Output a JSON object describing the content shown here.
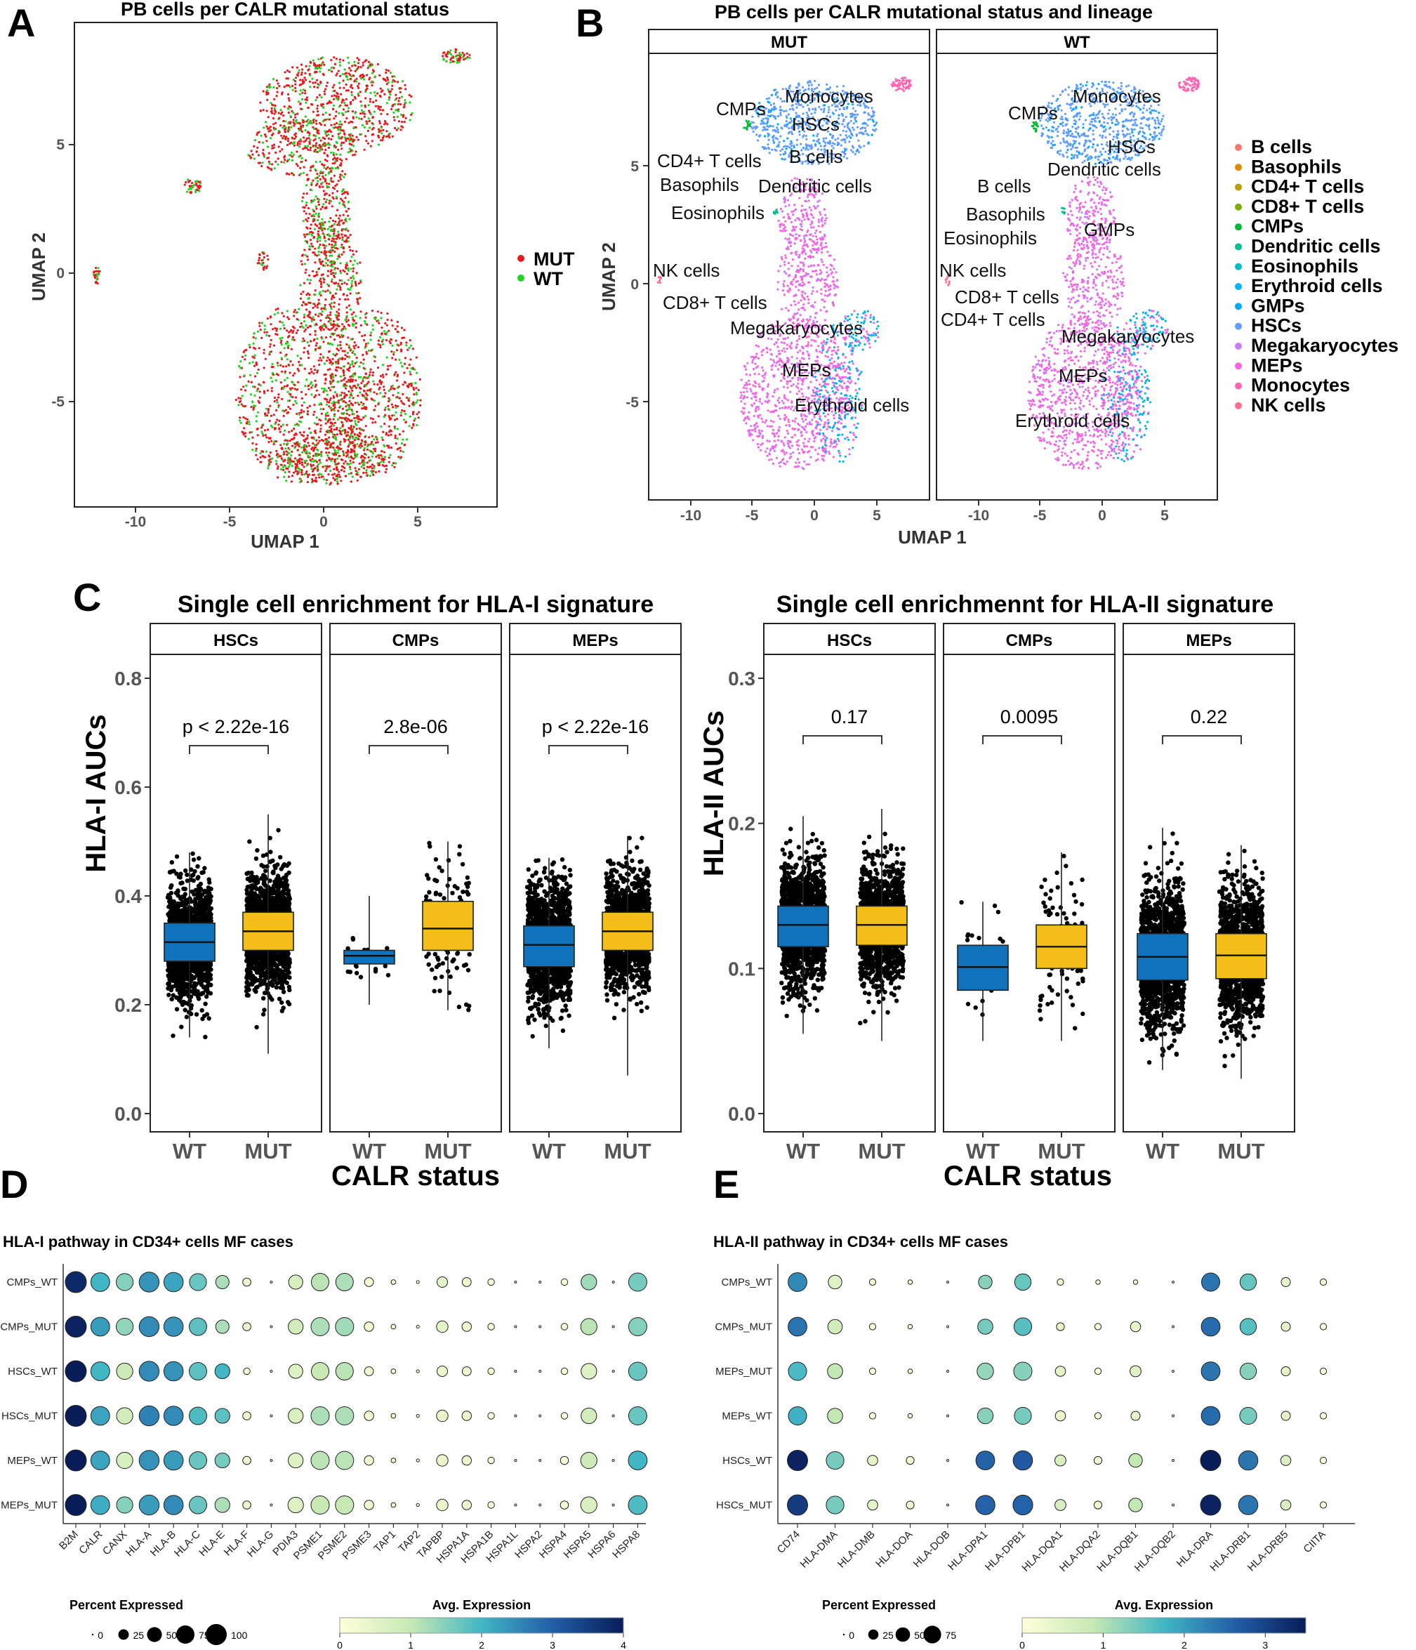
{
  "panels": {
    "A": "A",
    "B": "B",
    "C": "C",
    "D": "D",
    "E": "E"
  },
  "panelA": {
    "title": "PB cells per CALR mutational status",
    "xlabel": "UMAP 1",
    "ylabel": "UMAP 2",
    "xticks": [
      "-10",
      "-5",
      "0",
      "5"
    ],
    "yticks": [
      "-5",
      "0",
      "5"
    ],
    "legend": [
      {
        "label": "MUT",
        "color": "#e8191c"
      },
      {
        "label": "WT",
        "color": "#1fd31f"
      }
    ]
  },
  "panelB": {
    "title": "PB cells per CALR mutational status and lineage",
    "facets": [
      "MUT",
      "WT"
    ],
    "xlabel": "UMAP 1",
    "ylabel": "UMAP 2",
    "xticks": [
      "-10",
      "-5",
      "0",
      "5"
    ],
    "yticks": [
      "-5",
      "0",
      "5"
    ],
    "mut_labels": [
      "Monocytes",
      "CMPs",
      "HSCs",
      "CD4+ T cells",
      "B cells",
      "Basophils",
      "Dendritic cells",
      "Eosinophils",
      "NK cells",
      "CD8+ T cells",
      "Megakaryocytes",
      "MEPs",
      "Erythroid cells"
    ],
    "wt_labels": [
      "Monocytes",
      "CMPs",
      "HSCs",
      "Dendritic cells",
      "B cells",
      "Basophils",
      "GMPs",
      "Eosinophils",
      "NK cells",
      "CD8+ T cells",
      "CD4+ T cells",
      "Megakaryocytes",
      "MEPs",
      "Erythroid cells"
    ],
    "legend": [
      {
        "label": "B cells",
        "color": "#f8766d"
      },
      {
        "label": "Basophils",
        "color": "#de8c00"
      },
      {
        "label": "CD4+ T cells",
        "color": "#b79f00"
      },
      {
        "label": "CD8+ T cells",
        "color": "#7cae00"
      },
      {
        "label": "CMPs",
        "color": "#00ba38"
      },
      {
        "label": "Dendritic cells",
        "color": "#00c08b"
      },
      {
        "label": "Eosinophils",
        "color": "#00bfc4"
      },
      {
        "label": "Erythroid cells",
        "color": "#00b4f0"
      },
      {
        "label": "GMPs",
        "color": "#00a9ff"
      },
      {
        "label": "HSCs",
        "color": "#619cff"
      },
      {
        "label": "Megakaryocytes",
        "color": "#c77cff"
      },
      {
        "label": "MEPs",
        "color": "#f564e3"
      },
      {
        "label": "Monocytes",
        "color": "#ff64b0"
      },
      {
        "label": "NK cells",
        "color": "#ff6c91"
      }
    ]
  },
  "chart_data": [
    {
      "type": "box",
      "title": "Single cell enrichment for HLA-I signature",
      "ylabel": "HLA-I AUCs",
      "xlabel": "CALR status",
      "ylim": [
        0,
        0.8
      ],
      "yticks": [
        "0.0",
        "0.2",
        "0.4",
        "0.6",
        "0.8"
      ],
      "categories": [
        "WT",
        "MUT"
      ],
      "colors": {
        "WT": "#0f72bd",
        "MUT": "#f2be17"
      },
      "facets": [
        {
          "name": "HSCs",
          "p": "p < 2.22e-16",
          "WT": {
            "min": 0.14,
            "q1": 0.28,
            "median": 0.315,
            "q3": 0.35,
            "max": 0.48
          },
          "MUT": {
            "min": 0.11,
            "q1": 0.3,
            "median": 0.335,
            "q3": 0.37,
            "max": 0.55
          }
        },
        {
          "name": "CMPs",
          "p": "2.8e-06",
          "WT": {
            "min": 0.2,
            "q1": 0.275,
            "median": 0.29,
            "q3": 0.3,
            "max": 0.4
          },
          "MUT": {
            "min": 0.19,
            "q1": 0.3,
            "median": 0.34,
            "q3": 0.39,
            "max": 0.5
          }
        },
        {
          "name": "MEPs",
          "p": "p < 2.22e-16",
          "WT": {
            "min": 0.12,
            "q1": 0.27,
            "median": 0.31,
            "q3": 0.345,
            "max": 0.47
          },
          "MUT": {
            "min": 0.07,
            "q1": 0.3,
            "median": 0.335,
            "q3": 0.37,
            "max": 0.51
          }
        }
      ]
    },
    {
      "type": "box",
      "title": "Single cell enrichmennt for HLA-II signature",
      "ylabel": "HLA-II AUCs",
      "xlabel": "CALR status",
      "ylim": [
        0,
        0.3
      ],
      "yticks": [
        "0.0",
        "0.1",
        "0.2",
        "0.3"
      ],
      "categories": [
        "WT",
        "MUT"
      ],
      "colors": {
        "WT": "#0f72bd",
        "MUT": "#f2be17"
      },
      "facets": [
        {
          "name": "HSCs",
          "p": "0.17",
          "WT": {
            "min": 0.055,
            "q1": 0.115,
            "median": 0.13,
            "q3": 0.143,
            "max": 0.205
          },
          "MUT": {
            "min": 0.05,
            "q1": 0.116,
            "median": 0.13,
            "q3": 0.143,
            "max": 0.21
          }
        },
        {
          "name": "CMPs",
          "p": "0.0095",
          "WT": {
            "min": 0.05,
            "q1": 0.085,
            "median": 0.101,
            "q3": 0.116,
            "max": 0.146
          },
          "MUT": {
            "min": 0.05,
            "q1": 0.1,
            "median": 0.115,
            "q3": 0.13,
            "max": 0.18
          }
        },
        {
          "name": "MEPs",
          "p": "0.22",
          "WT": {
            "min": 0.03,
            "q1": 0.092,
            "median": 0.108,
            "q3": 0.124,
            "max": 0.197
          },
          "MUT": {
            "min": 0.024,
            "q1": 0.093,
            "median": 0.109,
            "q3": 0.124,
            "max": 0.185
          }
        }
      ]
    },
    {
      "type": "dotplot",
      "title": "HLA-I pathway in CD34+ cells MF cases",
      "rows": [
        "CMPs_WT",
        "CMPs_MUT",
        "HSCs_WT",
        "HSCs_MUT",
        "MEPs_WT",
        "MEPs_MUT"
      ],
      "genes": [
        "B2M",
        "CALR",
        "CANX",
        "HLA-A",
        "HLA-B",
        "HLA-C",
        "HLA-E",
        "HLA-F",
        "HLA-G",
        "PDIA3",
        "PSME1",
        "PSME2",
        "PSME3",
        "TAP1",
        "TAP2",
        "TAPBP",
        "HSPA1A",
        "HSPA1B",
        "HSPA1L",
        "HSPA2",
        "HSPA4",
        "HSPA5",
        "HSPA6",
        "HSPA8"
      ],
      "pct": [
        [
          100,
          80,
          65,
          90,
          85,
          65,
          40,
          15,
          1,
          45,
          70,
          70,
          18,
          5,
          2,
          25,
          18,
          10,
          1,
          1,
          10,
          55,
          1,
          75
        ],
        [
          100,
          80,
          65,
          90,
          85,
          70,
          40,
          15,
          1,
          50,
          75,
          75,
          20,
          5,
          2,
          30,
          20,
          10,
          1,
          1,
          10,
          60,
          1,
          75
        ],
        [
          100,
          80,
          60,
          90,
          85,
          70,
          50,
          10,
          1,
          45,
          70,
          70,
          18,
          5,
          2,
          25,
          18,
          10,
          1,
          1,
          10,
          55,
          1,
          75
        ],
        [
          100,
          80,
          60,
          90,
          85,
          70,
          50,
          15,
          1,
          50,
          75,
          75,
          20,
          5,
          2,
          30,
          20,
          10,
          1,
          1,
          10,
          55,
          1,
          75
        ],
        [
          100,
          80,
          60,
          90,
          85,
          70,
          50,
          15,
          1,
          50,
          75,
          75,
          20,
          5,
          2,
          30,
          20,
          10,
          1,
          1,
          15,
          60,
          1,
          80
        ],
        [
          100,
          80,
          60,
          90,
          85,
          70,
          50,
          15,
          1,
          55,
          75,
          75,
          20,
          5,
          2,
          30,
          20,
          10,
          1,
          1,
          15,
          60,
          1,
          80
        ]
      ],
      "avg": [
        [
          3.8,
          2.0,
          1.5,
          2.4,
          2.2,
          1.7,
          1.2,
          0.3,
          0.0,
          0.7,
          1.1,
          1.2,
          0.2,
          0.1,
          0.0,
          0.5,
          0.3,
          0.1,
          0.0,
          0.0,
          0.1,
          1.3,
          0.0,
          1.6
        ],
        [
          3.9,
          2.3,
          1.4,
          2.5,
          2.4,
          1.8,
          1.2,
          0.3,
          0.0,
          0.8,
          1.2,
          1.3,
          0.2,
          0.1,
          0.0,
          0.5,
          0.3,
          0.1,
          0.0,
          0.0,
          0.1,
          1.1,
          0.0,
          1.5
        ],
        [
          4.0,
          2.0,
          0.9,
          2.5,
          2.4,
          1.8,
          2.0,
          0.2,
          0.0,
          0.6,
          1.0,
          1.1,
          0.2,
          0.1,
          0.0,
          0.4,
          0.3,
          0.1,
          0.0,
          0.0,
          0.1,
          0.6,
          0.0,
          1.7
        ],
        [
          4.0,
          2.2,
          0.8,
          2.6,
          2.5,
          1.9,
          1.8,
          0.2,
          0.0,
          0.7,
          1.2,
          1.2,
          0.2,
          0.1,
          0.0,
          0.4,
          0.3,
          0.1,
          0.0,
          0.0,
          0.1,
          0.8,
          0.0,
          1.7
        ],
        [
          4.0,
          2.2,
          0.7,
          2.4,
          2.3,
          1.7,
          1.6,
          0.3,
          0.0,
          0.6,
          1.1,
          1.1,
          0.2,
          0.1,
          0.0,
          0.4,
          0.3,
          0.1,
          0.0,
          0.0,
          0.2,
          0.9,
          0.0,
          2.0
        ],
        [
          4.0,
          2.1,
          1.5,
          2.3,
          2.5,
          1.7,
          1.2,
          0.3,
          0.0,
          0.6,
          1.0,
          1.0,
          0.2,
          0.1,
          0.0,
          0.4,
          0.3,
          0.1,
          0.0,
          0.0,
          0.2,
          0.7,
          0.0,
          1.9
        ]
      ],
      "size_legend_title": "Percent Expressed",
      "size_legend": [
        "0",
        "25",
        "50",
        "75",
        "100"
      ],
      "color_legend_title": "Avg. Expression",
      "color_legend": [
        "0",
        "1",
        "2",
        "3",
        "4"
      ],
      "color_max": 4
    },
    {
      "type": "dotplot",
      "title": "HLA-II pathway in CD34+ cells MF cases",
      "rows": [
        "CMPs_WT",
        "CMPs_MUT",
        "MEPs_MUT",
        "MEPs_WT",
        "HSCs_WT",
        "HSCs_MUT"
      ],
      "genes": [
        "CD74",
        "HLA-DMA",
        "HLA-DMB",
        "HLA-DOA",
        "HLA-DOB",
        "HLA-DPA1",
        "HLA-DPB1",
        "HLA-DQA1",
        "HLA-DQA2",
        "HLA-DQB1",
        "HLA-DQB2",
        "HLA-DRA",
        "HLA-DRB1",
        "HLA-DRB5",
        "CIITA"
      ],
      "pct": [
        [
          85,
          45,
          10,
          5,
          1,
          45,
          65,
          10,
          5,
          5,
          1,
          80,
          65,
          20,
          10
        ],
        [
          85,
          50,
          10,
          5,
          1,
          55,
          75,
          15,
          10,
          25,
          1,
          85,
          65,
          20,
          10
        ],
        [
          80,
          55,
          10,
          5,
          1,
          65,
          80,
          25,
          10,
          30,
          1,
          85,
          65,
          20,
          10
        ],
        [
          80,
          55,
          10,
          5,
          1,
          60,
          70,
          25,
          10,
          20,
          1,
          85,
          70,
          20,
          10
        ],
        [
          100,
          75,
          25,
          15,
          1,
          85,
          90,
          30,
          15,
          45,
          1,
          100,
          90,
          25,
          10
        ],
        [
          100,
          75,
          25,
          15,
          1,
          90,
          95,
          30,
          15,
          45,
          1,
          100,
          90,
          25,
          10
        ]
      ],
      "avg": [
        [
          2.2,
          0.5,
          0.1,
          0.1,
          0.0,
          1.3,
          1.5,
          0.3,
          0.1,
          0.2,
          0.0,
          2.4,
          1.5,
          0.4,
          0.1
        ],
        [
          2.4,
          0.7,
          0.1,
          0.1,
          0.0,
          1.4,
          1.6,
          0.3,
          0.1,
          0.4,
          0.0,
          2.5,
          1.6,
          0.4,
          0.1
        ],
        [
          1.7,
          0.9,
          0.1,
          0.1,
          0.0,
          1.2,
          1.3,
          0.4,
          0.1,
          0.5,
          0.0,
          2.4,
          1.3,
          0.4,
          0.1
        ],
        [
          1.8,
          0.9,
          0.1,
          0.1,
          0.0,
          1.3,
          1.4,
          0.3,
          0.1,
          0.4,
          0.0,
          2.5,
          1.4,
          0.4,
          0.1
        ],
        [
          3.4,
          1.4,
          0.4,
          0.2,
          0.0,
          2.6,
          2.7,
          0.6,
          0.3,
          0.9,
          0.0,
          3.5,
          2.4,
          0.6,
          0.1
        ],
        [
          3.1,
          1.4,
          0.4,
          0.2,
          0.0,
          2.6,
          2.6,
          0.6,
          0.3,
          0.9,
          0.0,
          3.4,
          2.4,
          0.6,
          0.1
        ]
      ],
      "size_legend_title": "Percent Expressed",
      "size_legend": [
        "0",
        "25",
        "50",
        "75"
      ],
      "color_legend_title": "Avg. Expression",
      "color_legend": [
        "0",
        "1",
        "2",
        "3"
      ],
      "color_max": 3.5
    }
  ]
}
